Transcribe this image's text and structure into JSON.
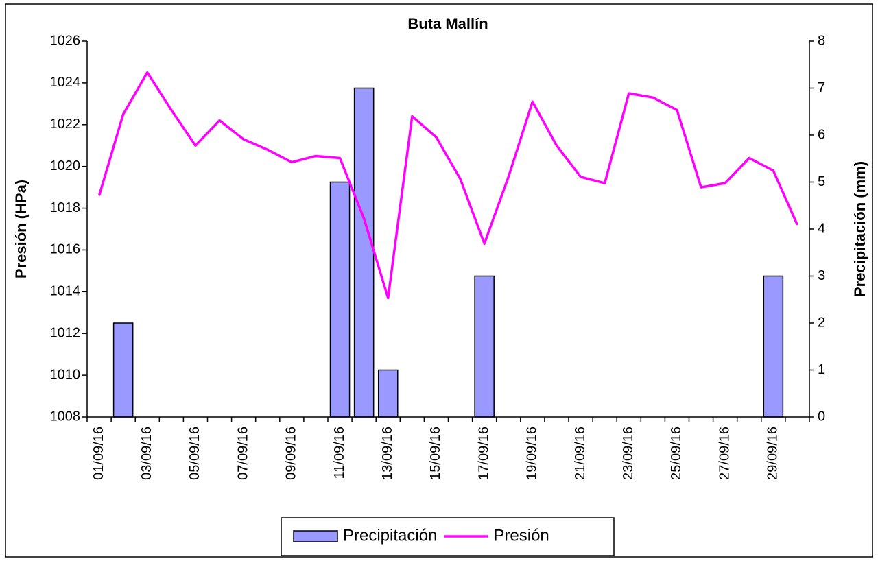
{
  "chart_data": {
    "type": "bar_line",
    "title": "Buta Mallín",
    "ylabel": "Presión (HPa)",
    "y2label": "Precipitación (mm)",
    "categories": [
      "01/09/16",
      null,
      "03/09/16",
      null,
      "05/09/16",
      null,
      "07/09/16",
      null,
      "09/09/16",
      null,
      "11/09/16",
      null,
      "13/09/16",
      null,
      "15/09/16",
      null,
      "17/09/16",
      null,
      "19/09/16",
      null,
      "21/09/16",
      null,
      "23/09/16",
      null,
      "25/09/16",
      null,
      "27/09/16",
      null,
      "29/09/16",
      null
    ],
    "series": [
      {
        "name": "Precipitación",
        "type": "bar",
        "axis": "y2",
        "color": "#9999ff",
        "values": [
          0,
          2,
          0,
          0,
          0,
          0,
          0,
          0,
          0,
          0,
          5,
          7,
          1,
          0,
          0,
          0,
          3,
          0,
          0,
          0,
          0,
          0,
          0,
          0,
          0,
          0,
          0,
          0,
          3,
          0
        ]
      },
      {
        "name": "Presión",
        "type": "line",
        "axis": "y",
        "color": "#ff00ff",
        "values": [
          1018.6,
          1022.5,
          1024.5,
          1022.7,
          1021.0,
          1022.2,
          1021.3,
          1020.8,
          1020.2,
          1020.5,
          1020.4,
          1017.5,
          1013.7,
          1022.4,
          1021.4,
          1019.4,
          1016.3,
          1019.5,
          1023.1,
          1021.0,
          1019.5,
          1019.2,
          1023.5,
          1023.3,
          1022.7,
          1019.0,
          1019.2,
          1020.4,
          1019.8,
          1017.2
        ]
      }
    ],
    "ylim": [
      1008,
      1026
    ],
    "yticks": [
      1008,
      1010,
      1012,
      1014,
      1016,
      1018,
      1020,
      1022,
      1024,
      1026
    ],
    "y2lim": [
      0,
      8
    ],
    "y2ticks": [
      0,
      1,
      2,
      3,
      4,
      5,
      6,
      7,
      8
    ],
    "grid": false,
    "legend": "bottom"
  }
}
